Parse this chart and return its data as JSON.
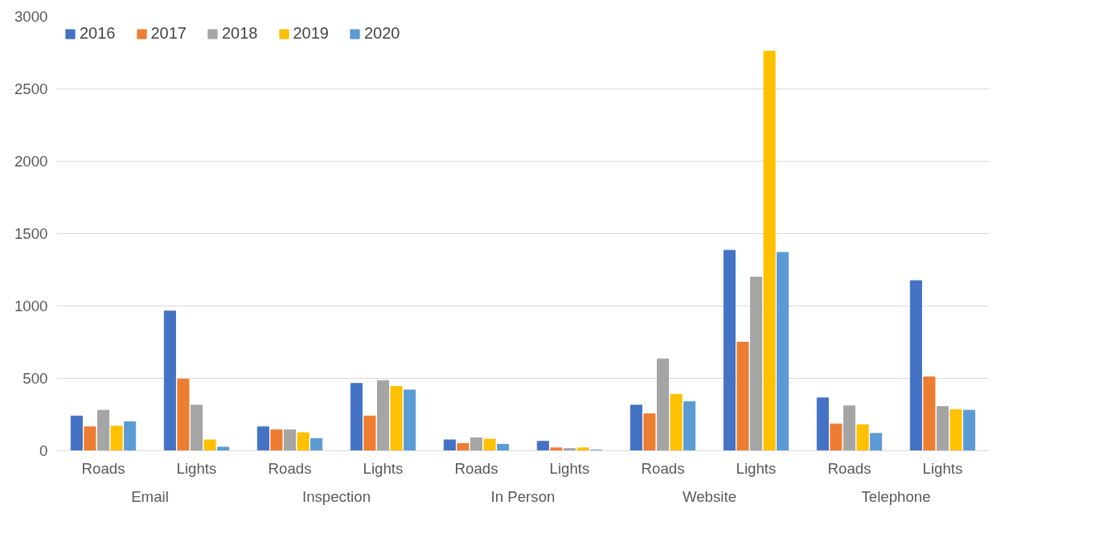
{
  "chart_data": {
    "type": "bar",
    "categories": [
      "Roads",
      "Lights",
      "Roads",
      "Lights",
      "Roads",
      "Lights",
      "Roads",
      "Lights",
      "Roads",
      "Lights"
    ],
    "annotations": [
      "Email",
      "Inspection",
      "In Person",
      "Website",
      "Telephone"
    ],
    "series": [
      {
        "name": "2016",
        "color": "#4472c4",
        "values": [
          240,
          965,
          165,
          465,
          75,
          65,
          315,
          1385,
          365,
          1175
        ]
      },
      {
        "name": "2017",
        "color": "#ed7d31",
        "values": [
          165,
          495,
          145,
          240,
          50,
          20,
          255,
          750,
          185,
          510
        ]
      },
      {
        "name": "2018",
        "color": "#a5a5a5",
        "values": [
          280,
          315,
          145,
          485,
          90,
          15,
          635,
          1200,
          310,
          305
        ]
      },
      {
        "name": "2019",
        "color": "#ffc000",
        "values": [
          170,
          75,
          125,
          445,
          80,
          20,
          390,
          2760,
          180,
          285
        ]
      },
      {
        "name": "2020",
        "color": "#5b9bd5",
        "values": [
          200,
          25,
          85,
          420,
          45,
          5,
          340,
          1370,
          120,
          280
        ]
      }
    ],
    "ylim": [
      0,
      3000
    ],
    "yticks": [
      0,
      500,
      1000,
      1500,
      2000,
      2500,
      3000
    ],
    "grid": "y",
    "legend": "top left"
  }
}
